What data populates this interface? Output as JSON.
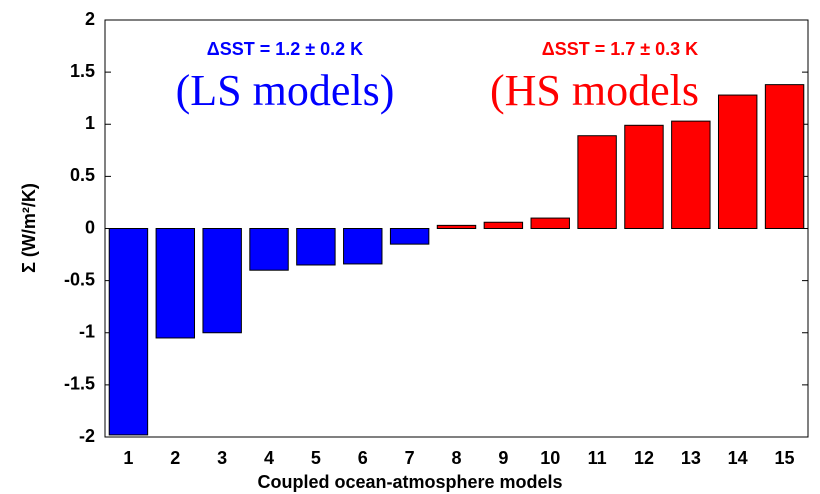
{
  "chart_data": {
    "type": "bar",
    "x_label": "Coupled ocean-atmosphere models",
    "y_label": "Σ (W/m²/K)",
    "categories": [
      "1",
      "2",
      "3",
      "4",
      "5",
      "6",
      "7",
      "8",
      "9",
      "10",
      "11",
      "12",
      "13",
      "14",
      "15"
    ],
    "values": [
      -1.98,
      -1.05,
      -1.0,
      -0.4,
      -0.35,
      -0.34,
      -0.15,
      0.03,
      0.06,
      0.1,
      0.89,
      0.99,
      1.03,
      1.28,
      1.38
    ],
    "colors": [
      "#0000ff",
      "#0000ff",
      "#0000ff",
      "#0000ff",
      "#0000ff",
      "#0000ff",
      "#0000ff",
      "#ff0000",
      "#ff0000",
      "#ff0000",
      "#ff0000",
      "#ff0000",
      "#ff0000",
      "#ff0000",
      "#ff0000"
    ],
    "ylim": [
      -2,
      2
    ],
    "yticks": [
      -2,
      -1.5,
      -1,
      -0.5,
      0,
      0.5,
      1,
      1.5,
      2
    ],
    "annotations": [
      {
        "text": "ΔSST = 1.2 ± 0.2 K",
        "color": "#0000ff"
      },
      {
        "text": "(LS models)",
        "color": "#0000ff"
      },
      {
        "text": "ΔSST = 1.7 ± 0.3 K",
        "color": "#ff0000"
      },
      {
        "text": "(HS models",
        "color": "#ff0000"
      }
    ]
  }
}
